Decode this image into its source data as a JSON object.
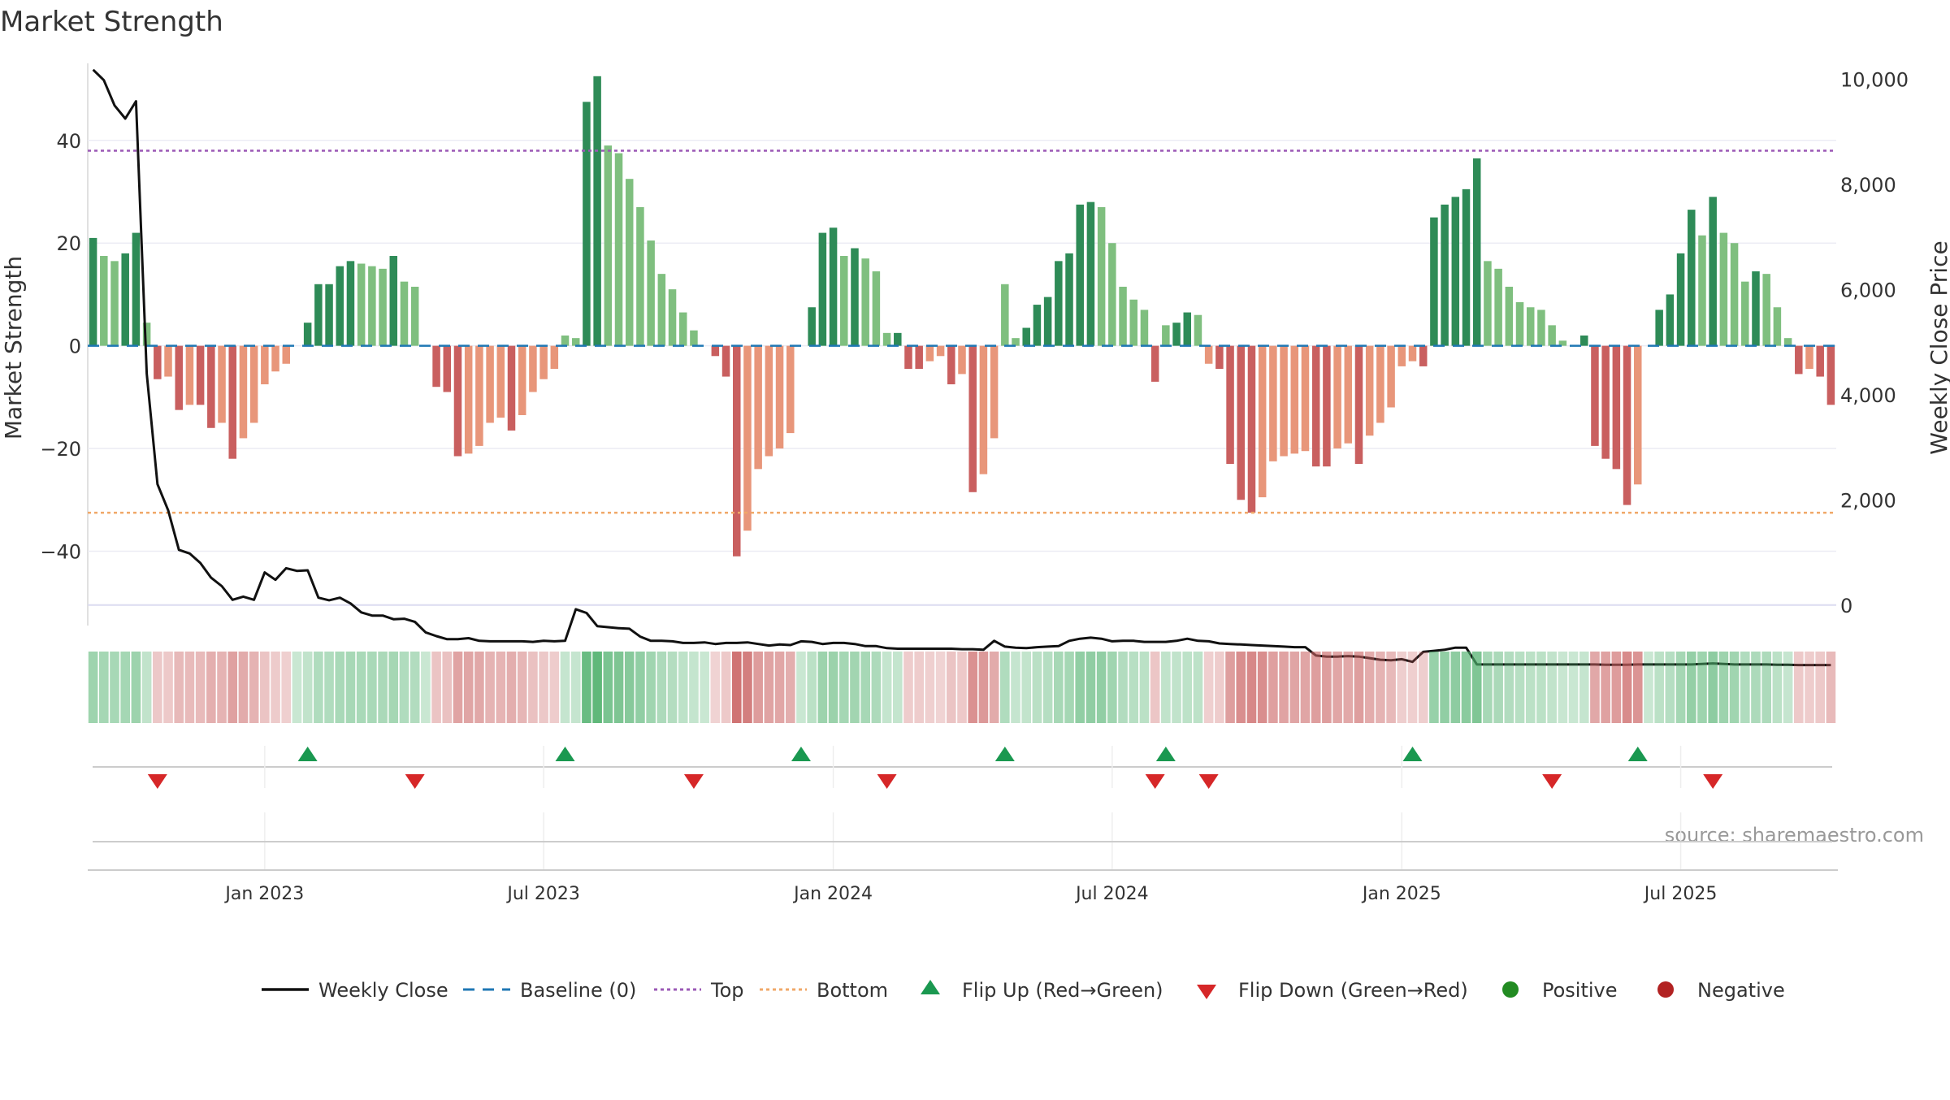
{
  "title": "Market Strength",
  "source": "source: sharemaestro.com",
  "colors": {
    "bar_pos_strong": "#2e8b57",
    "bar_pos_weak": "#7fbf7f",
    "bar_neg_strong": "#c95f5f",
    "bar_neg_weak": "#e8967a",
    "close_line": "#111111",
    "baseline": "#1f77b4",
    "top": "#9b59b6",
    "bottom": "#f0a868",
    "flip_up": "#1a9850",
    "flip_down": "#d62728",
    "positive": "#228b22",
    "negative": "#b22222",
    "strip_green": "#4caf6a",
    "strip_red": "#c96060"
  },
  "chart_data": {
    "type": "bar",
    "title": "Market Strength",
    "ylabel": "Market Strength",
    "y2label": "Weekly Close Price",
    "ylim": [
      -51,
      55
    ],
    "y2lim": [
      -50,
      10300
    ],
    "yticks": [
      40,
      20,
      0,
      -20,
      -40
    ],
    "ytick_labels": [
      "40",
      "20",
      "0",
      "−20",
      "−40"
    ],
    "y2ticks": [
      10000,
      8000,
      6000,
      4000,
      2000,
      0
    ],
    "y2tick_labels": [
      "10,000",
      "8,000",
      "6,000",
      "4,000",
      "2,000",
      "0"
    ],
    "xaxis_weeks": 163,
    "xticks": [
      {
        "week": 16,
        "label": "Jan 2023"
      },
      {
        "week": 42,
        "label": "Jul 2023"
      },
      {
        "week": 69,
        "label": "Jan 2024"
      },
      {
        "week": 95,
        "label": "Jul 2024"
      },
      {
        "week": 122,
        "label": "Jan 2025"
      },
      {
        "week": 148,
        "label": "Jul 2025"
      }
    ],
    "top_line": 38,
    "bottom_line": -32.5,
    "grid": true,
    "strength": [
      21,
      17.5,
      16.5,
      18,
      22,
      4.5,
      -6.5,
      -6,
      -12.5,
      -11.5,
      -11.5,
      -16,
      -15,
      -22,
      -18,
      -15,
      -7.5,
      -5,
      -3.5,
      0,
      4.5,
      12,
      12,
      15.5,
      16.5,
      16,
      15.5,
      15,
      17.5,
      12.5,
      11.5,
      0,
      -8,
      -9,
      -21.5,
      -21,
      -19.5,
      -15,
      -14,
      -16.5,
      -13.5,
      -9,
      -6.5,
      -4.5,
      2,
      1.5,
      47.5,
      52.5,
      39,
      37.5,
      32.5,
      27,
      20.5,
      14,
      11,
      6.5,
      3,
      0,
      -2,
      -6,
      -41,
      -36,
      -24,
      -21.5,
      -20,
      -17,
      0,
      7.5,
      22,
      23,
      17.5,
      19,
      17,
      14.5,
      2.5,
      2.5,
      -4.5,
      -4.5,
      -3,
      -2,
      -7.5,
      -5.5,
      -28.5,
      -25,
      -18,
      12,
      1.5,
      3.5,
      8,
      9.5,
      16.5,
      18,
      27.5,
      28,
      27,
      20,
      11.5,
      9,
      7,
      -7,
      4,
      4.5,
      6.5,
      6,
      -3.5,
      -4.5,
      -23,
      -30,
      -32.5,
      -29.5,
      -22.5,
      -21.5,
      -21,
      -20.5,
      -23.5,
      -23.5,
      -20,
      -19,
      -23,
      -17.5,
      -15,
      -12,
      -4,
      -3,
      -4,
      25,
      27.5,
      29,
      30.5,
      36.5,
      16.5,
      15,
      11.5,
      8.5,
      7.5,
      7,
      4,
      1,
      0,
      2,
      -19.5,
      -22,
      -24,
      -31,
      -27,
      0,
      7,
      10,
      18,
      26.5,
      21.5,
      29,
      22,
      20,
      12.5,
      14.5,
      14,
      7.5,
      1.5,
      -5.5,
      -4.5,
      -6,
      -11.5
    ],
    "strength_strength": "derived",
    "weekly_close": [
      10180,
      9980,
      9500,
      9250,
      9580,
      4400,
      2300,
      1800,
      1050,
      980,
      800,
      520,
      360,
      100,
      160,
      100,
      620,
      480,
      700,
      650,
      660,
      140,
      90,
      140,
      30,
      -140,
      -200,
      -200,
      -270,
      -260,
      -320,
      -520,
      -590,
      -650,
      -650,
      -630,
      -680,
      -690,
      -690,
      -690,
      -690,
      -700,
      -680,
      -690,
      -680,
      -80,
      -150,
      -400,
      -420,
      -440,
      -450,
      -600,
      -680,
      -680,
      -690,
      -720,
      -720,
      -710,
      -740,
      -720,
      -720,
      -710,
      -740,
      -770,
      -750,
      -760,
      -690,
      -700,
      -740,
      -720,
      -720,
      -740,
      -780,
      -780,
      -820,
      -830,
      -830,
      -830,
      -830,
      -830,
      -830,
      -840,
      -840,
      -850,
      -680,
      -790,
      -810,
      -820,
      -800,
      -790,
      -780,
      -680,
      -640,
      -620,
      -640,
      -690,
      -680,
      -680,
      -700,
      -700,
      -700,
      -680,
      -640,
      -680,
      -690,
      -730,
      -740,
      -750,
      -760,
      -770,
      -780,
      -790,
      -800,
      -800,
      -960,
      -980,
      -980,
      -970,
      -980,
      -1010,
      -1040,
      -1050,
      -1030,
      -1080,
      -890,
      -870,
      -850,
      -810,
      -810,
      -1130,
      -1130,
      -1130,
      -1130,
      -1130,
      -1130,
      -1130,
      -1130,
      -1130,
      -1130,
      -1130,
      -1130,
      -1135,
      -1135,
      -1135,
      -1130,
      -1130,
      -1130,
      -1130,
      -1130,
      -1130,
      -1120,
      -1110,
      -1120,
      -1130,
      -1130,
      -1130,
      -1130,
      -1135,
      -1135,
      -1140,
      -1140,
      -1140,
      -1140
    ],
    "flip_up_weeks": [
      20,
      44,
      66,
      85,
      100,
      123,
      144
    ],
    "flip_down_weeks": [
      6,
      30,
      56,
      74,
      99,
      104,
      136,
      151
    ]
  },
  "legend": [
    {
      "label": "Weekly Close",
      "marker": "line",
      "color": "#111111"
    },
    {
      "label": "Baseline (0)",
      "marker": "dash",
      "color": "#1f77b4"
    },
    {
      "label": "Top",
      "marker": "dot",
      "color": "#9b59b6"
    },
    {
      "label": "Bottom",
      "marker": "dot",
      "color": "#f0a868"
    },
    {
      "label": "Flip Up (Red→Green)",
      "marker": "tri-up",
      "color": "#1a9850"
    },
    {
      "label": "Flip Down (Green→Red)",
      "marker": "tri-down",
      "color": "#d62728"
    },
    {
      "label": "Positive",
      "marker": "circle",
      "color": "#228b22"
    },
    {
      "label": "Negative",
      "marker": "circle",
      "color": "#b22222"
    }
  ]
}
